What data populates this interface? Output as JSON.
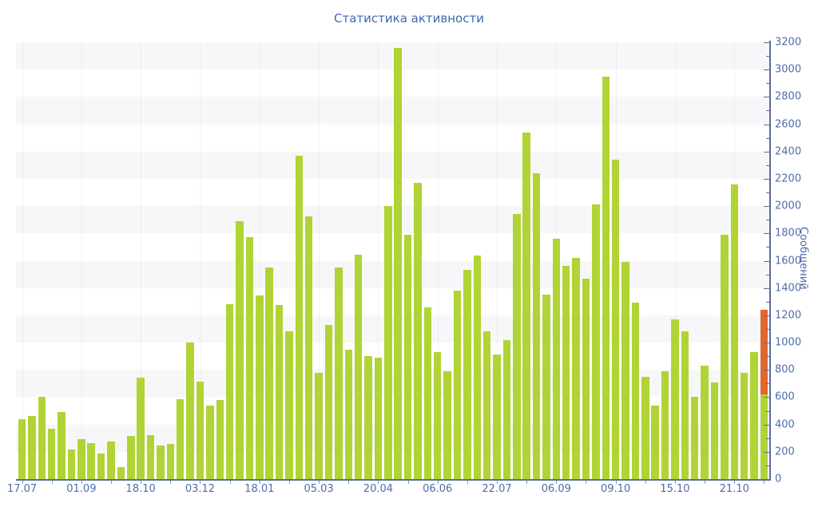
{
  "chart_data": {
    "type": "bar",
    "title": "Статистика активности",
    "ylabel": "Сообщений",
    "ylim": [
      0,
      3200
    ],
    "y_tick_step": 200,
    "y_minor_tick_step": 100,
    "grid": "alternating horizontal bands every 200 units, faint vertical lines at x ticks",
    "legend_position": "none",
    "x_tick_labels": [
      "17.07",
      "01.09",
      "18.10",
      "03.12",
      "18.01",
      "05.03",
      "20.04",
      "06.06",
      "22.07",
      "06.09",
      "09.10",
      "15.10",
      "21.10"
    ],
    "x_tick_bar_indices": [
      0,
      6,
      12,
      18,
      24,
      30,
      36,
      42,
      48,
      54,
      60,
      66,
      72
    ],
    "values": [
      440,
      460,
      600,
      370,
      490,
      215,
      295,
      265,
      190,
      275,
      85,
      315,
      745,
      320,
      245,
      255,
      585,
      1000,
      715,
      540,
      580,
      1280,
      1890,
      1775,
      1345,
      1550,
      1275,
      1080,
      2370,
      1925,
      780,
      1130,
      1550,
      950,
      1645,
      900,
      890,
      2000,
      3160,
      1790,
      2170,
      1260,
      930,
      790,
      1380,
      1530,
      1640,
      1080,
      910,
      1020,
      1940,
      2540,
      2240,
      1350,
      1760,
      1560,
      1620,
      1470,
      2010,
      2950,
      2340,
      1590,
      1290,
      750,
      540,
      790,
      1170,
      1080,
      600,
      830,
      710,
      1790,
      2160,
      780,
      930,
      1240
    ],
    "highlight_last_bar": {
      "index": 75,
      "total": 1240,
      "green_segment": [
        0,
        620
      ],
      "orange_segment": [
        620,
        1240
      ]
    },
    "colors": {
      "bar": "#b0d435",
      "highlight": "#e2662d",
      "axis": "#5b6c9e",
      "tick_text": "#4e6da8",
      "title_text": "#3f68ae",
      "band": "#f7f7f9",
      "minor_tick": "#8a93ab",
      "gridline": "rgba(130,140,170,0.10)"
    }
  }
}
